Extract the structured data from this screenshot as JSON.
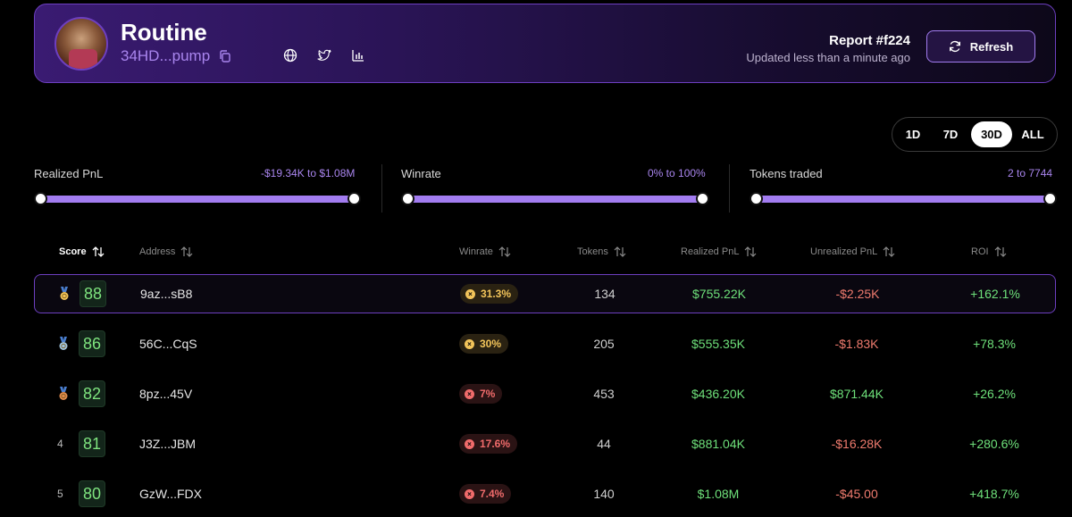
{
  "header": {
    "title": "Routine",
    "address": "34HD...pump",
    "report_title": "Report #f224",
    "report_subtitle": "Updated less than a minute ago",
    "refresh_label": "Refresh"
  },
  "periods": [
    {
      "label": "1D",
      "active": false
    },
    {
      "label": "7D",
      "active": false
    },
    {
      "label": "30D",
      "active": true
    },
    {
      "label": "ALL",
      "active": false
    }
  ],
  "filters": [
    {
      "label": "Realized PnL",
      "range": "-$19.34K to $1.08M"
    },
    {
      "label": "Winrate",
      "range": "0% to 100%"
    },
    {
      "label": "Tokens traded",
      "range": "2 to 7744"
    }
  ],
  "table": {
    "columns": [
      "Score",
      "Address",
      "Winrate",
      "Tokens",
      "Realized PnL",
      "Unrealized PnL",
      "ROI"
    ],
    "rows": [
      {
        "rank": "",
        "medal": "gold",
        "score": "88",
        "address": "9az...sB8",
        "winrate": "31.3%",
        "winrate_color": "amber",
        "tokens": "134",
        "realized": "$755.22K",
        "unrealized": "-$2.25K",
        "unrealized_neg": true,
        "roi": "+162.1%",
        "highlight": true
      },
      {
        "rank": "",
        "medal": "silver",
        "score": "86",
        "address": "56C...CqS",
        "winrate": "30%",
        "winrate_color": "amber",
        "tokens": "205",
        "realized": "$555.35K",
        "unrealized": "-$1.83K",
        "unrealized_neg": true,
        "roi": "+78.3%",
        "highlight": false
      },
      {
        "rank": "",
        "medal": "bronze",
        "score": "82",
        "address": "8pz...45V",
        "winrate": "7%",
        "winrate_color": "red",
        "tokens": "453",
        "realized": "$436.20K",
        "unrealized": "$871.44K",
        "unrealized_neg": false,
        "roi": "+26.2%",
        "highlight": false
      },
      {
        "rank": "4",
        "medal": "",
        "score": "81",
        "address": "J3Z...JBM",
        "winrate": "17.6%",
        "winrate_color": "red",
        "tokens": "44",
        "realized": "$881.04K",
        "unrealized": "-$16.28K",
        "unrealized_neg": true,
        "roi": "+280.6%",
        "highlight": false
      },
      {
        "rank": "5",
        "medal": "",
        "score": "80",
        "address": "GzW...FDX",
        "winrate": "7.4%",
        "winrate_color": "red",
        "tokens": "140",
        "realized": "$1.08M",
        "unrealized": "-$45.00",
        "unrealized_neg": true,
        "roi": "+418.7%",
        "highlight": false
      }
    ]
  },
  "colors": {
    "accent": "#a27cf0",
    "positive": "#6ee07a",
    "negative": "#ef7b6e",
    "score_green": "#7ee37e",
    "winrate_amber": "#f2c45a",
    "winrate_red": "#f06b6b"
  },
  "icons": [
    "copy-icon",
    "globe-icon",
    "twitter-icon",
    "bar-chart-icon",
    "refresh-icon",
    "sort-icon",
    "medal-icon"
  ]
}
